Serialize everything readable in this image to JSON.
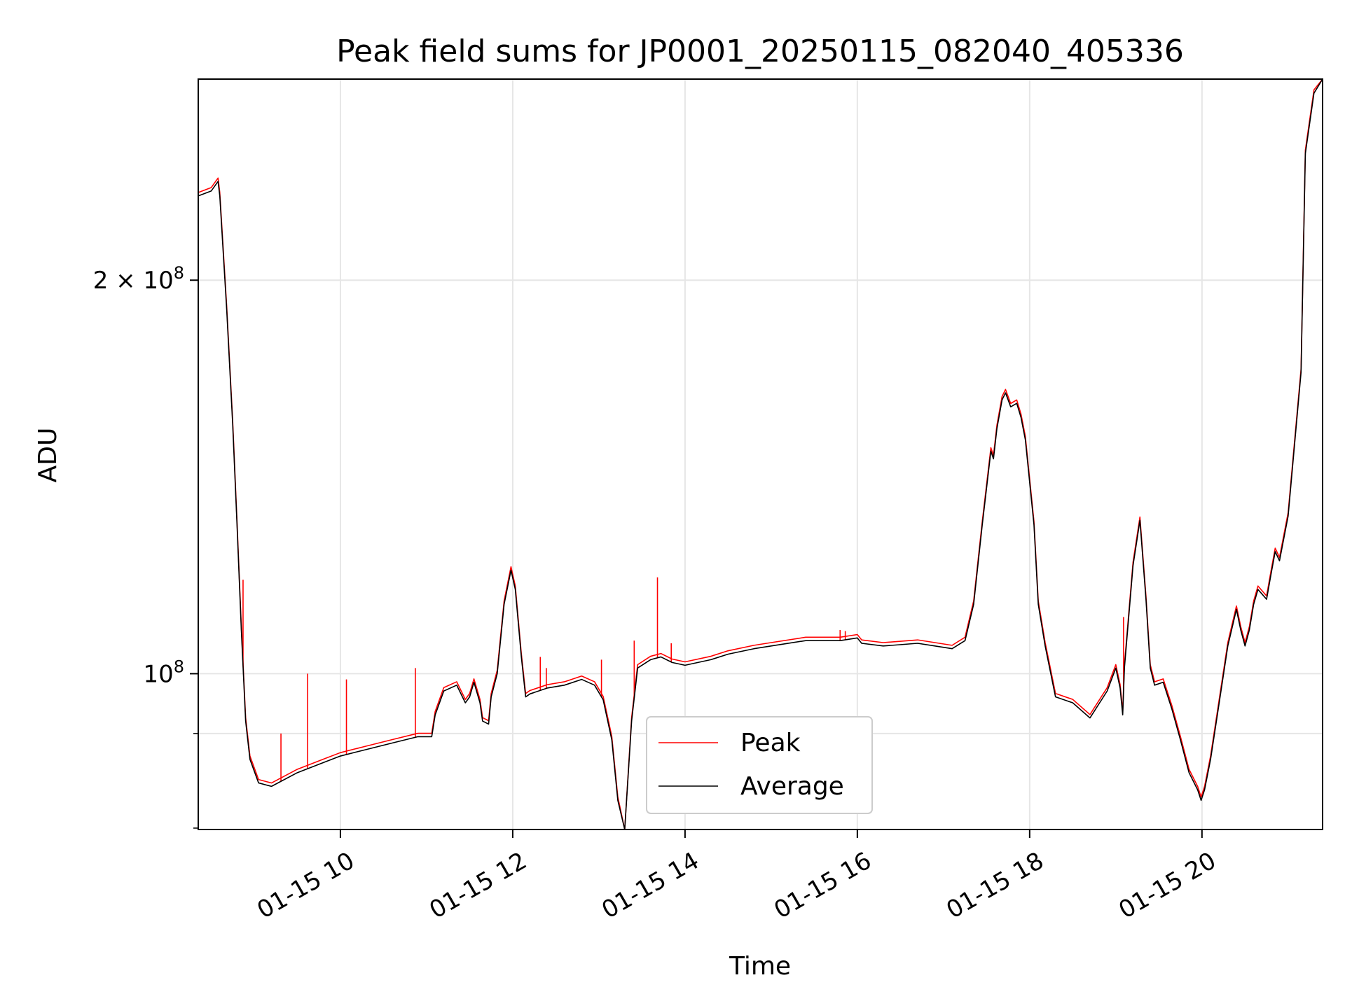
{
  "chart_data": {
    "type": "line",
    "title": "Peak field sums for JP0001_20250115_082040_405336",
    "xlabel": "Time",
    "ylabel": "ADU",
    "y_scale": "log",
    "ylim": [
      76000000,
      285000000
    ],
    "xlim": [
      8.35,
      21.4
    ],
    "x_ticks": [
      {
        "value": 10,
        "label": "01-15 10"
      },
      {
        "value": 12,
        "label": "01-15 12"
      },
      {
        "value": 14,
        "label": "01-15 14"
      },
      {
        "value": 16,
        "label": "01-15 16"
      },
      {
        "value": 18,
        "label": "01-15 18"
      },
      {
        "value": 20,
        "label": "01-15 20"
      }
    ],
    "y_ticks": [
      {
        "value": 100000000,
        "label_base": "10",
        "label_exp": "8",
        "label_coef": ""
      },
      {
        "value": 200000000,
        "label_base": "10",
        "label_exp": "8",
        "label_coef": "2 × "
      }
    ],
    "grid": true,
    "legend_position": "lower-center",
    "series": [
      {
        "name": "Peak",
        "color": "#ff0000",
        "spikes": [
          {
            "x": 8.87,
            "y": 118000000
          },
          {
            "x": 9.31,
            "y": 90000000
          },
          {
            "x": 9.62,
            "y": 100000000
          },
          {
            "x": 10.07,
            "y": 99000000
          },
          {
            "x": 10.87,
            "y": 101000000
          },
          {
            "x": 12.32,
            "y": 103000000
          },
          {
            "x": 12.39,
            "y": 101000000
          },
          {
            "x": 13.03,
            "y": 102500000
          },
          {
            "x": 13.41,
            "y": 106000000
          },
          {
            "x": 13.68,
            "y": 118500000
          },
          {
            "x": 13.84,
            "y": 105500000
          },
          {
            "x": 15.8,
            "y": 108000000
          },
          {
            "x": 15.86,
            "y": 107800000
          },
          {
            "x": 19.09,
            "y": 110500000
          }
        ]
      },
      {
        "name": "Average",
        "color": "#000000",
        "x": [
          8.35,
          8.5,
          8.58,
          8.6,
          8.68,
          8.75,
          8.8,
          8.85,
          8.9,
          8.95,
          9.05,
          9.2,
          9.5,
          9.8,
          10.0,
          10.3,
          10.6,
          10.9,
          11.06,
          11.1,
          11.2,
          11.35,
          11.45,
          11.5,
          11.55,
          11.62,
          11.65,
          11.72,
          11.75,
          11.82,
          11.9,
          11.98,
          12.03,
          12.1,
          12.15,
          12.2,
          12.4,
          12.6,
          12.8,
          12.95,
          13.05,
          13.15,
          13.22,
          13.3,
          13.38,
          13.45,
          13.6,
          13.72,
          13.85,
          14.0,
          14.3,
          14.5,
          14.8,
          15.0,
          15.4,
          15.8,
          16.0,
          16.05,
          16.3,
          16.7,
          16.9,
          17.1,
          17.25,
          17.35,
          17.45,
          17.55,
          17.58,
          17.62,
          17.68,
          17.72,
          17.78,
          17.85,
          17.9,
          17.95,
          18.05,
          18.1,
          18.18,
          18.3,
          18.5,
          18.7,
          18.9,
          19.0,
          19.05,
          19.08,
          19.1,
          19.2,
          19.28,
          19.35,
          19.4,
          19.45,
          19.55,
          19.65,
          19.75,
          19.85,
          19.95,
          19.99,
          20.03,
          20.1,
          20.2,
          20.3,
          20.4,
          20.45,
          20.5,
          20.55,
          20.6,
          20.65,
          20.7,
          20.75,
          20.8,
          20.85,
          20.9,
          21.0,
          21.15,
          21.2,
          21.3,
          21.4
        ],
        "y": [
          232000000,
          234000000,
          238000000,
          232000000,
          190000000,
          155000000,
          130000000,
          108000000,
          92000000,
          86000000,
          82500000,
          82000000,
          84000000,
          85500000,
          86500000,
          87500000,
          88500000,
          89500000,
          89500000,
          93000000,
          97000000,
          98000000,
          95000000,
          96000000,
          98500000,
          95000000,
          92000000,
          91500000,
          96000000,
          100000000,
          113000000,
          120000000,
          116000000,
          103000000,
          96000000,
          96500000,
          97500000,
          98000000,
          99000000,
          98000000,
          95500000,
          89000000,
          80000000,
          75500000,
          92000000,
          101000000,
          102500000,
          103000000,
          102000000,
          101500000,
          102500000,
          103500000,
          104500000,
          105000000,
          106000000,
          106000000,
          106500000,
          105500000,
          105000000,
          105500000,
          105000000,
          104500000,
          106000000,
          113000000,
          130000000,
          148000000,
          146000000,
          154000000,
          162000000,
          164000000,
          160000000,
          161000000,
          157000000,
          151000000,
          130000000,
          113000000,
          105000000,
          96000000,
          95000000,
          92500000,
          97000000,
          101000000,
          97500000,
          93000000,
          101000000,
          121000000,
          131000000,
          114000000,
          101000000,
          98000000,
          98500000,
          94000000,
          89000000,
          84000000,
          81500000,
          80000000,
          81500000,
          86000000,
          95000000,
          105000000,
          112000000,
          108000000,
          105000000,
          108000000,
          113000000,
          116000000,
          115000000,
          114000000,
          119000000,
          124000000,
          122000000,
          132000000,
          170000000,
          250000000,
          278000000,
          286000000
        ]
      }
    ]
  }
}
